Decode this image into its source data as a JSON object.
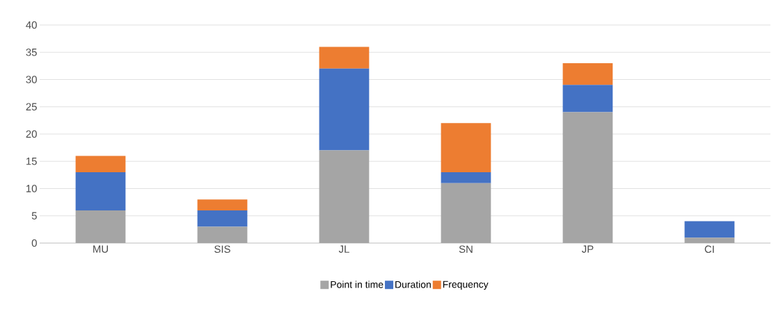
{
  "chart_data": {
    "type": "bar",
    "stacked": true,
    "categories": [
      "MU",
      "SIS",
      "JL",
      "SN",
      "JP",
      "CI"
    ],
    "series": [
      {
        "name": "Point in time",
        "color": "#a5a5a5",
        "values": [
          6,
          3,
          17,
          11,
          24,
          1
        ]
      },
      {
        "name": "Duration",
        "color": "#4472c4",
        "values": [
          7,
          3,
          15,
          2,
          5,
          3
        ]
      },
      {
        "name": "Frequency",
        "color": "#ed7d31",
        "values": [
          3,
          2,
          4,
          9,
          4,
          0
        ]
      }
    ],
    "ylim": [
      0,
      40
    ],
    "yticks": [
      0,
      5,
      10,
      15,
      20,
      25,
      30,
      35,
      40
    ],
    "grid": "y",
    "legend": "bottom"
  }
}
